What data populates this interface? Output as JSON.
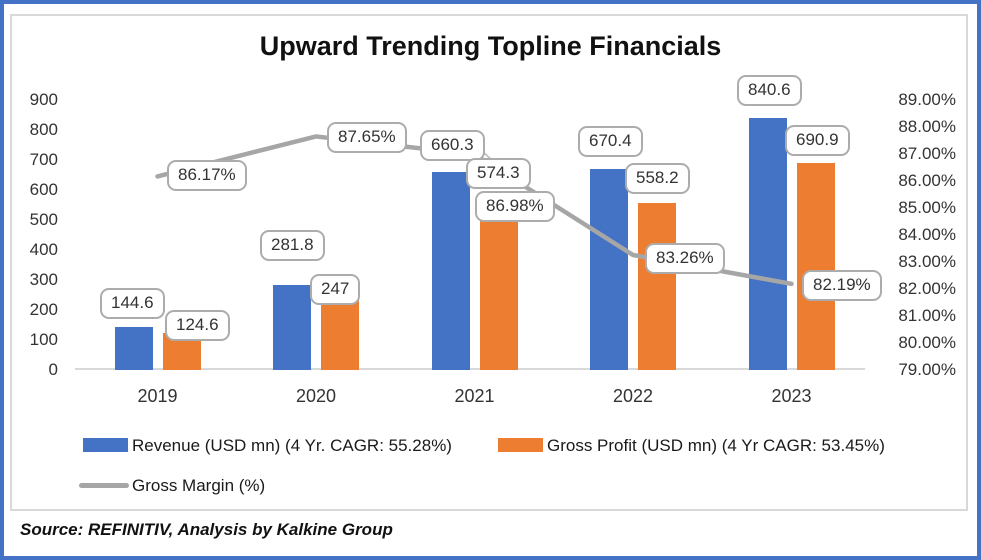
{
  "chart": {
    "title": "Upward Trending Topline Financials",
    "source_note": "Source: REFINITIV, Analysis by Kalkine Group"
  },
  "colors": {
    "revenue_bar": "#4472C4",
    "gross_profit_bar": "#ED7D31",
    "gross_margin_line": "#A6A6A6",
    "frame_border": "#4472C4",
    "axis_line": "#D9D9D9"
  },
  "chart_data": {
    "type": "combo",
    "title": "Upward Trending Topline Financials",
    "categories": [
      "2019",
      "2020",
      "2021",
      "2022",
      "2023"
    ],
    "series": [
      {
        "name": "Revenue (USD mn) (4 Yr. CAGR: 55.28%)",
        "type": "bar",
        "axis": "left",
        "color": "#4472C4",
        "values": [
          144.6,
          281.8,
          660.3,
          670.4,
          840.6
        ],
        "labels": [
          "144.6",
          "281.8",
          "660.3",
          "670.4",
          "840.6"
        ]
      },
      {
        "name": "Gross Profit (USD mn) (4 Yr CAGR: 53.45%)",
        "type": "bar",
        "axis": "left",
        "color": "#ED7D31",
        "values": [
          124.6,
          247,
          574.3,
          558.2,
          690.9
        ],
        "labels": [
          "124.6",
          "247",
          "574.3",
          "558.2",
          "690.9"
        ]
      },
      {
        "name": "Gross Margin (%)",
        "type": "line",
        "axis": "right",
        "color": "#A6A6A6",
        "values": [
          86.17,
          87.65,
          86.98,
          83.26,
          82.19
        ],
        "labels": [
          "86.17%",
          "87.65%",
          "86.98%",
          "83.26%",
          "82.19%"
        ]
      }
    ],
    "left_axis": {
      "min": 0,
      "max": 900,
      "step": 100,
      "ticks": [
        "900",
        "800",
        "700",
        "600",
        "500",
        "400",
        "300",
        "200",
        "100",
        "0"
      ]
    },
    "right_axis": {
      "min": 79,
      "max": 89,
      "step": 1,
      "ticks": [
        "89.00%",
        "88.00%",
        "87.00%",
        "86.00%",
        "85.00%",
        "84.00%",
        "83.00%",
        "82.00%",
        "81.00%",
        "80.00%",
        "79.00%"
      ]
    },
    "legend_position": "bottom",
    "grid": false
  }
}
